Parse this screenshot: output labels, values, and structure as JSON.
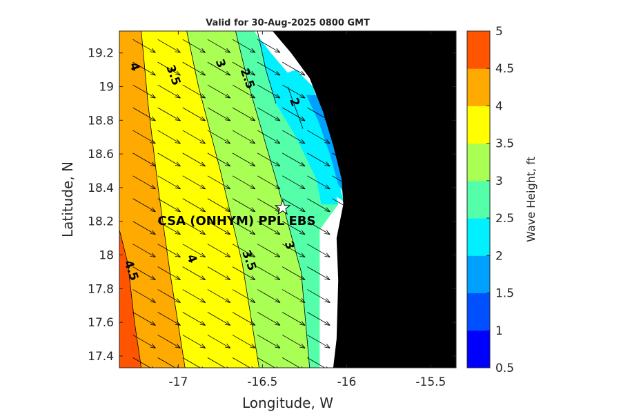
{
  "chart_data": {
    "type": "heatmap",
    "title": "Valid for 30-Aug-2025 0800 GMT",
    "xlabel": "Longitude, W",
    "ylabel": "Latitude, N",
    "colorbar_label": "Wave Height, ft",
    "xlim": [
      -17.35,
      -15.35
    ],
    "ylim": [
      17.33,
      19.33
    ],
    "x_ticks": [
      -17,
      -16.5,
      -16,
      -15.5
    ],
    "x_tick_labels": [
      "-17",
      "-16.5",
      "-16",
      "-15.5"
    ],
    "y_ticks": [
      17.4,
      17.6,
      17.8,
      18,
      18.2,
      18.4,
      18.6,
      18.8,
      19,
      19.2
    ],
    "y_tick_labels": [
      "17.4",
      "17.6",
      "17.8",
      "18",
      "18.2",
      "18.4",
      "18.6",
      "18.8",
      "19",
      "19.2"
    ],
    "colorbar": {
      "levels": [
        0.5,
        1,
        1.5,
        2,
        2.5,
        3,
        3.5,
        4,
        4.5,
        5
      ],
      "tick_labels": [
        "0.5",
        "1",
        "1.5",
        "2",
        "2.5",
        "3",
        "3.5",
        "4",
        "4.5",
        "5"
      ],
      "colors": [
        "#0000ff",
        "#0050ff",
        "#00a0ff",
        "#00f0ff",
        "#55ffaa",
        "#aaff55",
        "#ffff00",
        "#ffaa00",
        "#ff5500"
      ]
    },
    "land_color": "#000000",
    "nodata_color": "#ffffff",
    "contour_bands": [
      {
        "min": 4.5,
        "max": 5,
        "west_edge": [
          [
            -17.35,
            17.33
          ],
          [
            -17.35,
            18.15
          ],
          [
            -17.3,
            17.95
          ],
          [
            -17.26,
            17.6
          ],
          [
            -17.22,
            17.33
          ]
        ]
      },
      {
        "min": 4,
        "max": 4.5,
        "boundary_lon": [
          [
            -17.22,
            17.33
          ],
          [
            -17.3,
            17.95
          ],
          [
            -17.35,
            18.15
          ]
        ],
        "upper_lon": [
          [
            -16.96,
            17.33
          ],
          [
            -17.05,
            17.9
          ],
          [
            -17.12,
            18.4
          ],
          [
            -17.18,
            18.9
          ],
          [
            -17.22,
            19.33
          ]
        ]
      },
      {
        "min": 3.5,
        "max": 4,
        "upper_lon": [
          [
            -16.52,
            17.33
          ],
          [
            -16.62,
            17.95
          ],
          [
            -16.75,
            18.5
          ],
          [
            -16.88,
            19.0
          ],
          [
            -16.95,
            19.33
          ]
        ]
      },
      {
        "min": 3,
        "max": 3.5,
        "upper_lon": [
          [
            -16.22,
            17.33
          ],
          [
            -16.27,
            17.9
          ],
          [
            -16.42,
            18.45
          ],
          [
            -16.58,
            19.0
          ],
          [
            -16.66,
            19.33
          ]
        ]
      },
      {
        "min": 2.5,
        "max": 3,
        "upper_lon": [
          [
            -16.42,
            18.9
          ],
          [
            -16.48,
            19.1
          ],
          [
            -16.53,
            19.33
          ]
        ]
      },
      {
        "min": 2,
        "max": 2.5,
        "upper_lon": [
          [
            -16.26,
            18.75
          ],
          [
            -16.35,
            19.0
          ]
        ]
      }
    ],
    "contour_labels": [
      {
        "text": "4",
        "lon": -17.28,
        "lat": 19.11
      },
      {
        "text": "3.5",
        "lon": -17.05,
        "lat": 19.06
      },
      {
        "text": "3",
        "lon": -16.77,
        "lat": 19.13
      },
      {
        "text": "2.5",
        "lon": -16.61,
        "lat": 19.04
      },
      {
        "text": "2",
        "lon": -16.33,
        "lat": 18.9
      },
      {
        "text": "4.5",
        "lon": -17.3,
        "lat": 17.9
      },
      {
        "text": "4",
        "lon": -16.94,
        "lat": 17.97
      },
      {
        "text": "3.5",
        "lon": -16.6,
        "lat": 17.96
      },
      {
        "text": "3",
        "lon": -16.36,
        "lat": 18.05
      }
    ],
    "site": {
      "label": "CSA (ONHYM) PPL EBS",
      "lon": -16.38,
      "lat": 18.28,
      "marker": "star"
    },
    "wave_direction_deg_from_north_toward": 120,
    "grid": false
  }
}
